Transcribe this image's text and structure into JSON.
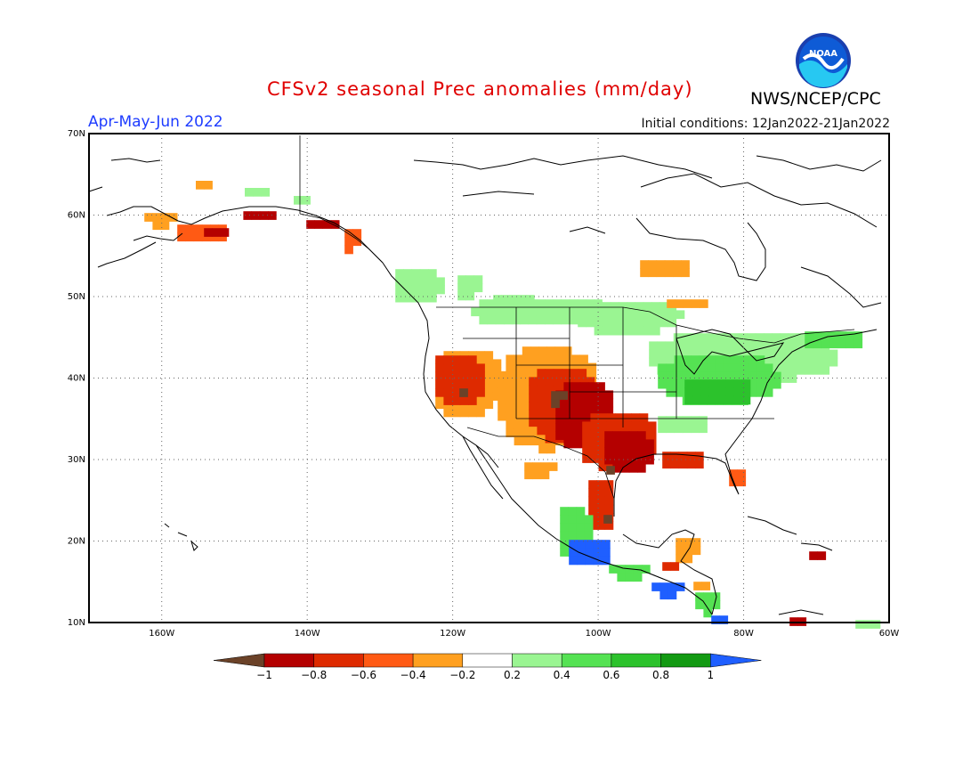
{
  "header": {
    "title": "CFSv2 seasonal Prec anomalies (mm/day)",
    "season": "Apr-May-Jun 2022",
    "initial_conditions": "Initial conditions: 12Jan2022-21Jan2022",
    "agency": "NWS/NCEP/CPC",
    "logo_text": "NOAA"
  },
  "axes": {
    "lat_ticks": [
      "70N",
      "60N",
      "50N",
      "40N",
      "30N",
      "20N",
      "10N"
    ],
    "lon_ticks": [
      "160W",
      "140W",
      "120W",
      "100W",
      "80W",
      "60W"
    ]
  },
  "colorbar": {
    "labels": [
      "−1",
      "−0.8",
      "−0.6",
      "−0.4",
      "−0.2",
      "0.2",
      "0.4",
      "0.6",
      "0.8",
      "1"
    ],
    "colors": [
      "#6b4228",
      "#b40000",
      "#de2a00",
      "#ff5a14",
      "#ffa020",
      "#ffffff",
      "#9af592",
      "#55e253",
      "#2cc22c",
      "#139a13",
      "#1f5fff"
    ]
  },
  "chart_data": {
    "type": "heatmap",
    "title": "CFSv2 seasonal Prec anomalies (mm/day)",
    "lat_range": [
      10,
      70
    ],
    "lon_range": [
      -170,
      -60
    ],
    "anomaly_regions": [
      {
        "region": "Southern Alaska",
        "class": "-0.4 to -1"
      },
      {
        "region": "Alaska panhandle / Yukon coast",
        "class": "-0.6 to -0.8"
      },
      {
        "region": "Pacific Northwest coast",
        "class": "0.2 to 0.4"
      },
      {
        "region": "California / Nevada",
        "class": "-0.4 to -0.8"
      },
      {
        "region": "Southern Plains / Texas",
        "class": "-0.6 to -1"
      },
      {
        "region": "Southern Rockies",
        "class": "-0.4 to -1"
      },
      {
        "region": "Gulf Coast",
        "class": "-0.4 to -0.6"
      },
      {
        "region": "Northern Plains / Great Lakes",
        "class": "0.2 to 0.4"
      },
      {
        "region": "Ohio Valley",
        "class": "0.6 to 0.8"
      },
      {
        "region": "Hudson Bay south",
        "class": "-0.2 to -0.4"
      },
      {
        "region": "Western Mexico coast",
        "class": "0.6 to 1"
      },
      {
        "region": "Central America",
        "class": "0.4 to 1"
      },
      {
        "region": "Hispaniola",
        "class": "-0.6 to -0.8"
      }
    ]
  }
}
